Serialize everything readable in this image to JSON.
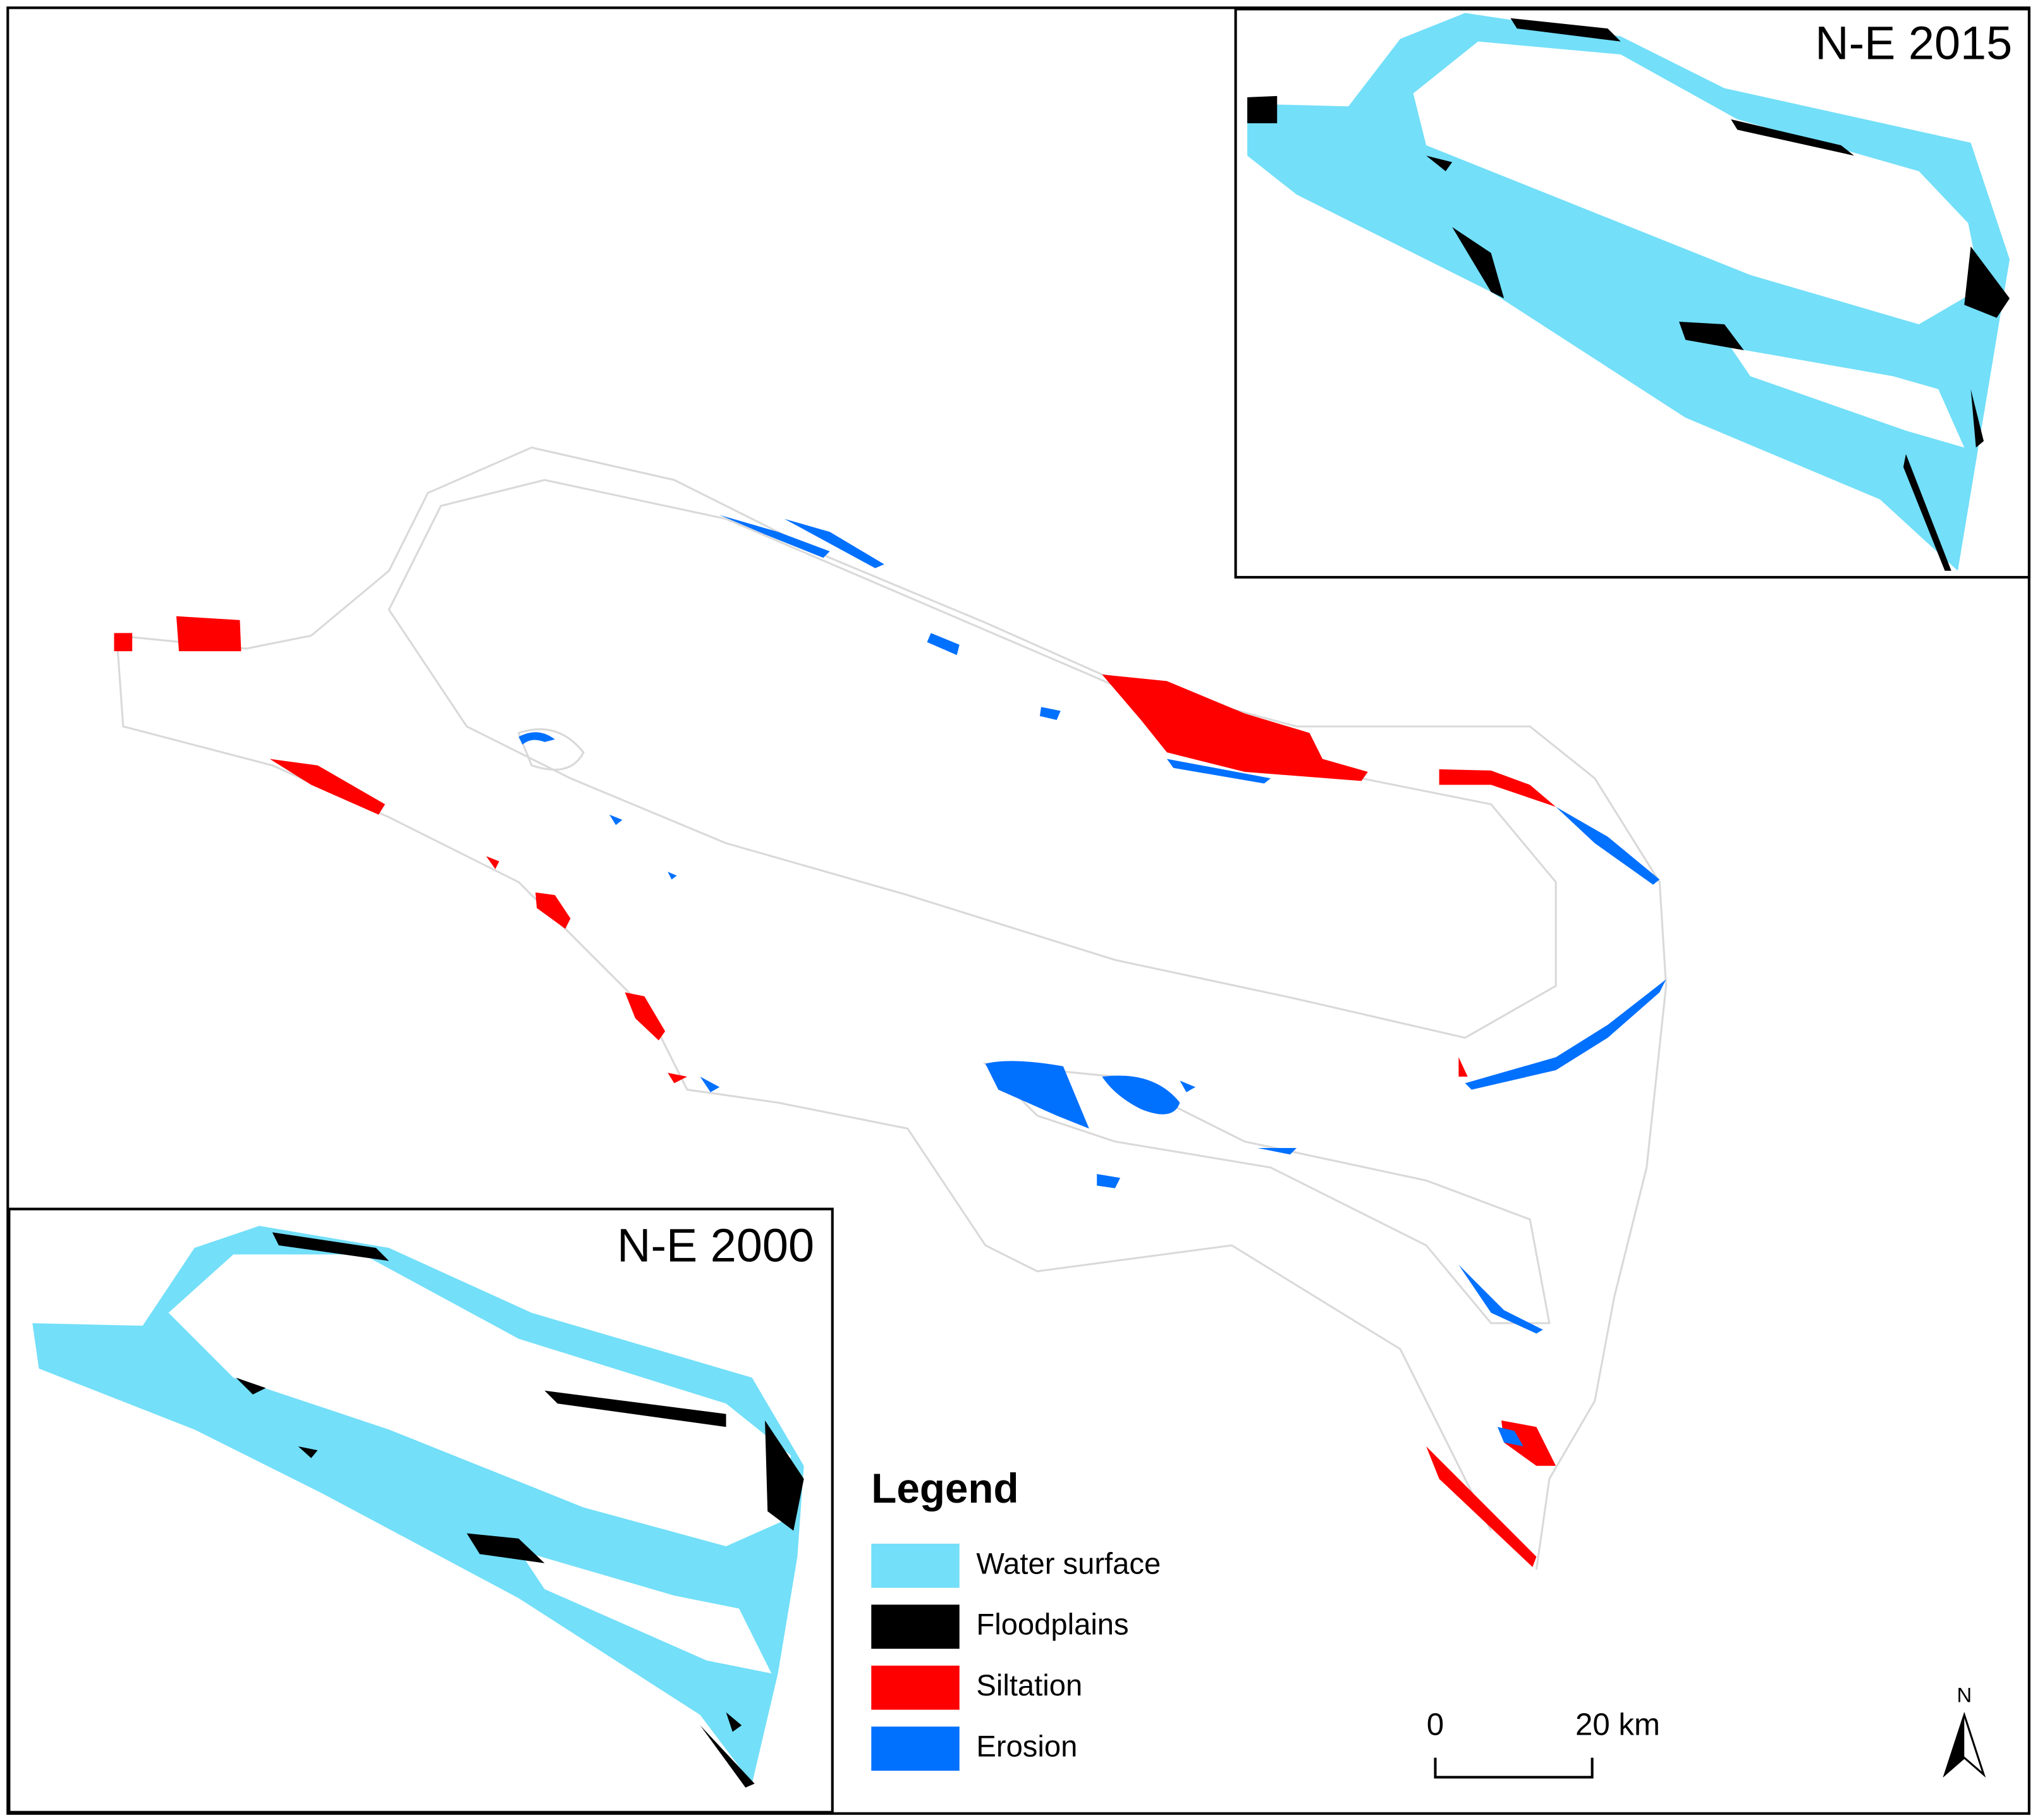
{
  "insets": [
    {
      "label": "N-E 2015"
    },
    {
      "label": "N-E 2000"
    }
  ],
  "legend": {
    "title": "Legend",
    "items": [
      {
        "name": "Water surface",
        "color": "#73dff9"
      },
      {
        "name": "Floodplains",
        "color": "#000000"
      },
      {
        "name": "Siltation",
        "color": "#ff0000"
      },
      {
        "name": "Erosion",
        "color": "#0070ff"
      }
    ]
  },
  "scale_bar": {
    "labels": [
      "0",
      "20 km"
    ]
  },
  "north_arrow": {
    "label": "N"
  }
}
